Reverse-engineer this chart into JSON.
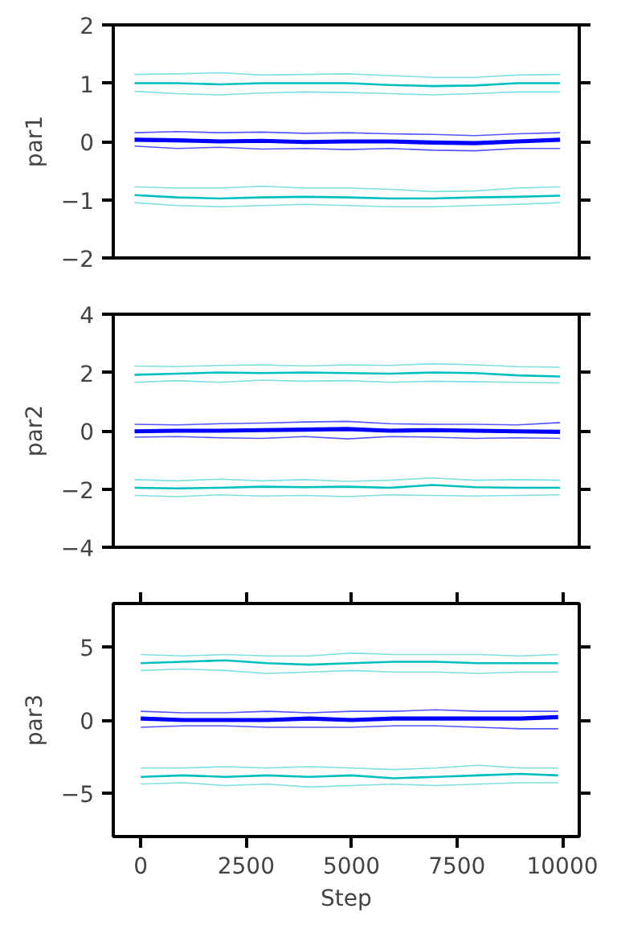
{
  "chart_data": [
    {
      "type": "line",
      "ylabel": "par1",
      "ylim": [
        -2,
        2
      ],
      "yticks": [
        -2,
        -1,
        0,
        1,
        2
      ],
      "tick_labels": "y",
      "grid": false,
      "categories": [
        null,
        null,
        null,
        null,
        null,
        null,
        null,
        null,
        null,
        null,
        null
      ],
      "series": [
        {
          "color": "#0000ff",
          "values": [
            0.03,
            0.02,
            0.0,
            0.01,
            -0.01,
            0.0,
            0.0,
            -0.02,
            -0.03,
            0.0,
            0.03
          ]
        },
        {
          "color": "#5555ff",
          "values": [
            0.15,
            0.17,
            0.15,
            0.16,
            0.14,
            0.15,
            0.13,
            0.12,
            0.1,
            0.13,
            0.15
          ]
        },
        {
          "color": "#5555ff",
          "values": [
            -0.08,
            -0.12,
            -0.1,
            -0.13,
            -0.12,
            -0.14,
            -0.12,
            -0.15,
            -0.16,
            -0.12,
            -0.12
          ]
        },
        {
          "color": "#00bfbf",
          "values": [
            1.0,
            1.0,
            0.98,
            1.0,
            1.0,
            1.0,
            0.97,
            0.95,
            0.96,
            1.0,
            1.0
          ]
        },
        {
          "color": "#80dfdf",
          "values": [
            1.15,
            1.16,
            1.18,
            1.14,
            1.15,
            1.16,
            1.13,
            1.1,
            1.1,
            1.14,
            1.15
          ]
        },
        {
          "color": "#80dfdf",
          "values": [
            0.86,
            0.82,
            0.8,
            0.83,
            0.85,
            0.84,
            0.82,
            0.8,
            0.82,
            0.85,
            0.85
          ]
        },
        {
          "color": "#00bfbf",
          "values": [
            -0.92,
            -0.96,
            -0.98,
            -0.96,
            -0.95,
            -0.96,
            -0.98,
            -0.98,
            -0.96,
            -0.95,
            -0.93
          ]
        },
        {
          "color": "#80dfdf",
          "values": [
            -0.78,
            -0.8,
            -0.8,
            -0.77,
            -0.8,
            -0.8,
            -0.82,
            -0.86,
            -0.85,
            -0.8,
            -0.78
          ]
        },
        {
          "color": "#80dfdf",
          "values": [
            -1.05,
            -1.1,
            -1.12,
            -1.1,
            -1.08,
            -1.1,
            -1.12,
            -1.12,
            -1.1,
            -1.08,
            -1.05
          ]
        }
      ]
    },
    {
      "type": "line",
      "ylabel": "par2",
      "ylim": [
        -4,
        4
      ],
      "yticks": [
        -4,
        -2,
        0,
        2,
        4
      ],
      "tick_labels": "y",
      "grid": false,
      "categories": [
        null,
        null,
        null,
        null,
        null,
        null,
        null,
        null,
        null,
        null,
        null
      ],
      "series": [
        {
          "color": "#0000ff",
          "values": [
            -0.02,
            0.0,
            0.0,
            0.02,
            0.04,
            0.06,
            0.0,
            0.02,
            0.0,
            -0.02,
            -0.04
          ]
        },
        {
          "color": "#5555ff",
          "values": [
            0.22,
            0.2,
            0.24,
            0.26,
            0.3,
            0.32,
            0.24,
            0.22,
            0.22,
            0.2,
            0.28
          ]
        },
        {
          "color": "#5555ff",
          "values": [
            -0.22,
            -0.2,
            -0.24,
            -0.26,
            -0.2,
            -0.28,
            -0.2,
            -0.22,
            -0.26,
            -0.24,
            -0.26
          ]
        },
        {
          "color": "#00bfbf",
          "values": [
            1.92,
            1.96,
            2.0,
            1.98,
            2.0,
            1.98,
            1.96,
            2.0,
            1.98,
            1.9,
            1.86
          ]
        },
        {
          "color": "#80dfdf",
          "values": [
            2.22,
            2.2,
            2.24,
            2.26,
            2.22,
            2.26,
            2.24,
            2.3,
            2.26,
            2.2,
            2.18
          ]
        },
        {
          "color": "#80dfdf",
          "values": [
            1.66,
            1.72,
            1.66,
            1.74,
            1.7,
            1.72,
            1.66,
            1.7,
            1.68,
            1.66,
            1.64
          ]
        },
        {
          "color": "#00bfbf",
          "values": [
            -1.96,
            -1.98,
            -1.96,
            -1.92,
            -1.94,
            -1.92,
            -1.96,
            -1.86,
            -1.94,
            -1.96,
            -1.96
          ]
        },
        {
          "color": "#80dfdf",
          "values": [
            -1.68,
            -1.72,
            -1.66,
            -1.72,
            -1.68,
            -1.74,
            -1.7,
            -1.62,
            -1.7,
            -1.68,
            -1.7
          ]
        },
        {
          "color": "#80dfdf",
          "values": [
            -2.22,
            -2.26,
            -2.2,
            -2.24,
            -2.22,
            -2.26,
            -2.2,
            -2.22,
            -2.24,
            -2.22,
            -2.2
          ]
        }
      ]
    },
    {
      "type": "line",
      "ylabel": "par3",
      "xlabel": "Step",
      "ylim": [
        -8,
        8
      ],
      "yticks": [
        -5,
        0,
        5
      ],
      "xlim": [
        -650,
        10400
      ],
      "xticks": [
        0,
        2500,
        5000,
        7500,
        10000
      ],
      "grid": false,
      "x": [
        0,
        1000,
        2000,
        3000,
        4000,
        5000,
        6000,
        7000,
        8000,
        9000,
        9900
      ],
      "series": [
        {
          "color": "#0000ff",
          "values": [
            0.1,
            0.0,
            0.0,
            0.0,
            0.1,
            0.0,
            0.1,
            0.1,
            0.1,
            0.1,
            0.2
          ]
        },
        {
          "color": "#5555ff",
          "values": [
            0.6,
            0.5,
            0.5,
            0.6,
            0.5,
            0.6,
            0.6,
            0.7,
            0.6,
            0.6,
            0.6
          ]
        },
        {
          "color": "#5555ff",
          "values": [
            -0.5,
            -0.4,
            -0.4,
            -0.5,
            -0.5,
            -0.5,
            -0.4,
            -0.4,
            -0.5,
            -0.6,
            -0.6
          ]
        },
        {
          "color": "#00bfbf",
          "values": [
            3.9,
            4.0,
            4.1,
            3.9,
            3.8,
            3.9,
            4.0,
            4.0,
            3.9,
            3.9,
            3.9
          ]
        },
        {
          "color": "#80dfdf",
          "values": [
            4.5,
            4.4,
            4.5,
            4.4,
            4.4,
            4.6,
            4.5,
            4.5,
            4.5,
            4.4,
            4.5
          ]
        },
        {
          "color": "#80dfdf",
          "values": [
            3.4,
            3.5,
            3.4,
            3.2,
            3.3,
            3.4,
            3.3,
            3.3,
            3.2,
            3.3,
            3.3
          ]
        },
        {
          "color": "#00bfbf",
          "values": [
            -3.9,
            -3.8,
            -3.9,
            -3.8,
            -3.9,
            -3.8,
            -4.0,
            -3.9,
            -3.8,
            -3.7,
            -3.8
          ]
        },
        {
          "color": "#80dfdf",
          "values": [
            -3.3,
            -3.3,
            -3.2,
            -3.3,
            -3.2,
            -3.3,
            -3.4,
            -3.3,
            -3.1,
            -3.3,
            -3.3
          ]
        },
        {
          "color": "#80dfdf",
          "values": [
            -4.4,
            -4.3,
            -4.5,
            -4.4,
            -4.6,
            -4.5,
            -4.4,
            -4.5,
            -4.4,
            -4.3,
            -4.3
          ]
        }
      ]
    }
  ]
}
